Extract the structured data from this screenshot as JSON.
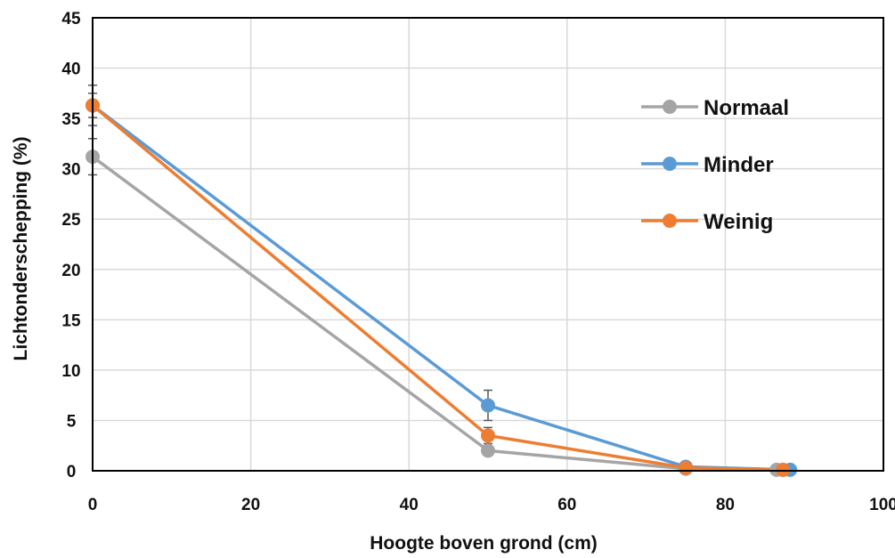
{
  "chart_data": {
    "type": "scatter",
    "xlabel": "Hoogte boven grond (cm)",
    "ylabel": "Lichtonderschepping (%)",
    "xlim": [
      0,
      100
    ],
    "ylim": [
      0,
      45
    ],
    "x_ticks": [
      "0",
      "20",
      "40",
      "60",
      "80",
      "100"
    ],
    "y_ticks": [
      "0",
      "5",
      "10",
      "15",
      "20",
      "25",
      "30",
      "35",
      "40",
      "45"
    ],
    "grid": true,
    "legend_position": "right",
    "series": [
      {
        "name": "Normaal",
        "color": "#a5a5a5",
        "points": [
          {
            "x": 0,
            "y": 31.2,
            "err": 1.8
          },
          {
            "x": 50,
            "y": 2.0,
            "err": 0.4
          },
          {
            "x": 75,
            "y": 0.2,
            "err": 0.1
          },
          {
            "x": 86.5,
            "y": 0.1,
            "err": 0
          }
        ]
      },
      {
        "name": "Minder",
        "color": "#5b9bd5",
        "points": [
          {
            "x": 0,
            "y": 36.3,
            "err": 2.0
          },
          {
            "x": 50,
            "y": 6.5,
            "err": 1.5
          },
          {
            "x": 75,
            "y": 0.4,
            "err": 0.1
          },
          {
            "x": 88.2,
            "y": 0.1,
            "err": 0
          }
        ]
      },
      {
        "name": "Weinig",
        "color": "#ed7d31",
        "points": [
          {
            "x": 0,
            "y": 36.3,
            "err": 1.2
          },
          {
            "x": 50,
            "y": 3.5,
            "err": 0.8
          },
          {
            "x": 75,
            "y": 0.3,
            "err": 0.1
          },
          {
            "x": 87.3,
            "y": 0.1,
            "err": 0
          }
        ]
      }
    ]
  }
}
